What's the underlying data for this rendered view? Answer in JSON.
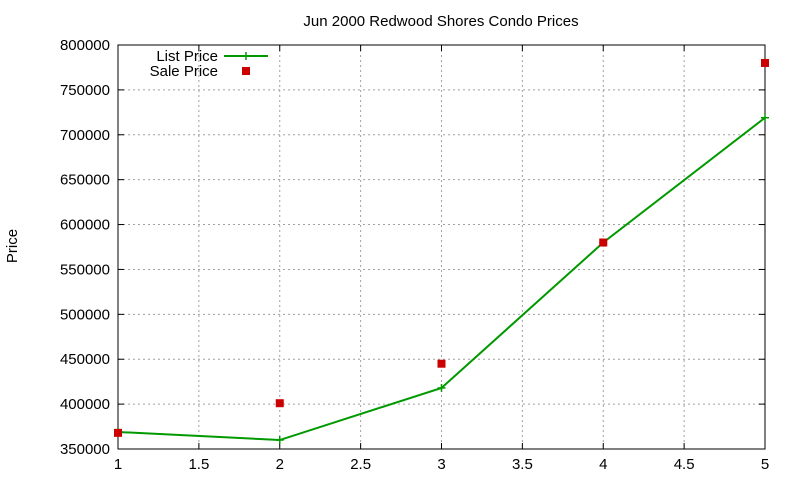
{
  "chart_data": {
    "type": "line",
    "title": "Jun 2000 Redwood Shores Condo Prices",
    "xlabel": "",
    "ylabel": "Price",
    "xlim": [
      1,
      5
    ],
    "ylim": [
      350000,
      800000
    ],
    "x_ticks": [
      "1",
      "1.5",
      "2",
      "2.5",
      "3",
      "3.5",
      "4",
      "4.5",
      "5"
    ],
    "y_ticks": [
      "350000",
      "400000",
      "450000",
      "500000",
      "550000",
      "600000",
      "650000",
      "700000",
      "750000",
      "800000"
    ],
    "grid": true,
    "legend_position": "top-left",
    "series": [
      {
        "name": "List Price",
        "style": "line-with-plus-markers",
        "color": "#009900",
        "x": [
          1,
          2,
          3,
          4,
          5
        ],
        "y": [
          369000,
          360000,
          418000,
          580000,
          719000
        ]
      },
      {
        "name": "Sale Price",
        "style": "square-markers",
        "color": "#cc0000",
        "x": [
          1,
          2,
          3,
          4,
          5
        ],
        "y": [
          368000,
          401000,
          445000,
          580000,
          780000
        ]
      }
    ]
  }
}
